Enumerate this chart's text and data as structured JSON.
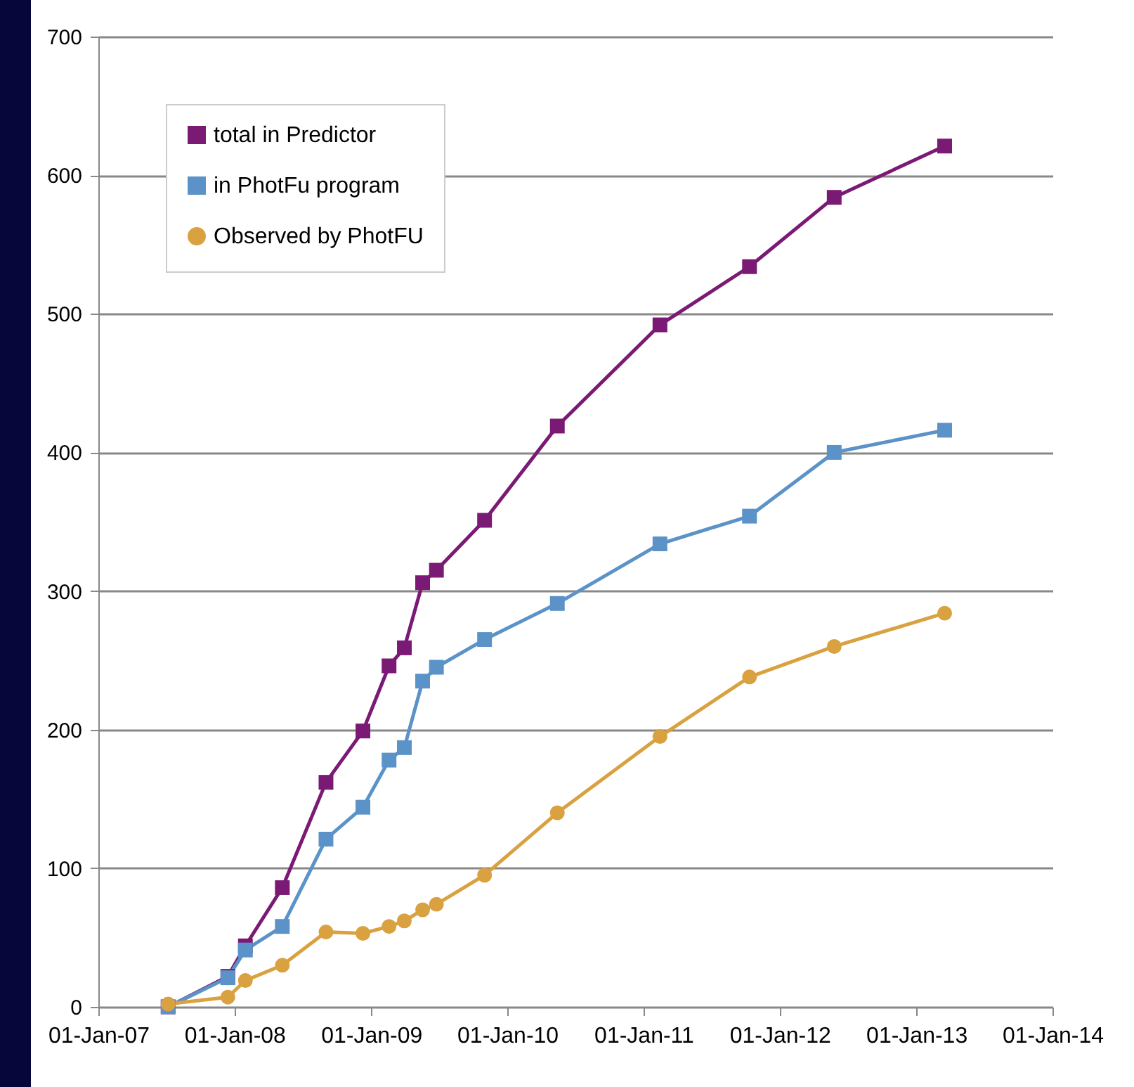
{
  "chart_data": {
    "type": "line",
    "x": [
      "2007-07-07",
      "2007-12-14",
      "2008-01-30",
      "2008-05-08",
      "2008-09-02",
      "2008-12-10",
      "2009-02-18",
      "2009-03-31",
      "2009-05-19",
      "2009-06-25",
      "2009-11-01",
      "2010-05-15",
      "2011-02-14",
      "2011-10-12",
      "2012-05-26",
      "2013-03-18"
    ],
    "series": [
      {
        "name": "total in Predictor",
        "color": "#7b1a74",
        "marker": "square",
        "values": [
          0,
          22,
          44,
          86,
          162,
          199,
          246,
          259,
          306,
          315,
          351,
          419,
          492,
          534,
          584,
          621
        ]
      },
      {
        "name": "in PhotFu program",
        "color": "#5b93c8",
        "marker": "square",
        "values": [
          0,
          21,
          41,
          58,
          121,
          144,
          178,
          187,
          235,
          245,
          265,
          291,
          334,
          354,
          400,
          416
        ]
      },
      {
        "name": "Observed by PhotFU",
        "color": "#d9a140",
        "marker": "circle",
        "values": [
          2,
          7,
          19,
          30,
          54,
          53,
          58,
          62,
          70,
          74,
          95,
          140,
          195,
          238,
          260,
          284
        ]
      }
    ],
    "xlim": [
      "2007-01-01",
      "2014-01-01"
    ],
    "xticks": [
      {
        "value": "2007-01-01",
        "label": "01-Jan-07"
      },
      {
        "value": "2008-01-01",
        "label": "01-Jan-08"
      },
      {
        "value": "2009-01-01",
        "label": "01-Jan-09"
      },
      {
        "value": "2010-01-01",
        "label": "01-Jan-10"
      },
      {
        "value": "2011-01-01",
        "label": "01-Jan-11"
      },
      {
        "value": "2012-01-01",
        "label": "01-Jan-12"
      },
      {
        "value": "2013-01-01",
        "label": "01-Jan-13"
      },
      {
        "value": "2014-01-01",
        "label": "01-Jan-14"
      }
    ],
    "ylim": [
      0,
      700
    ],
    "yticks": [
      0,
      100,
      200,
      300,
      400,
      500,
      600,
      700
    ],
    "grid": "y",
    "legend": "top left"
  }
}
